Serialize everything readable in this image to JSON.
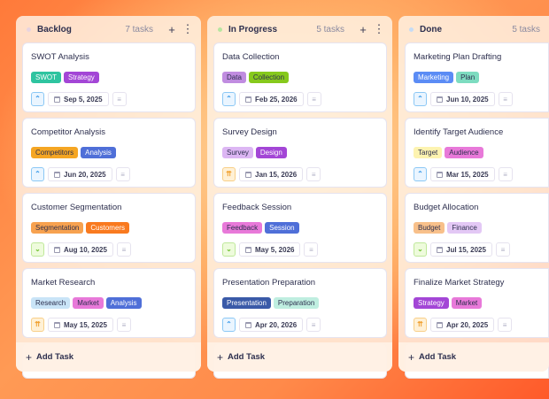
{
  "colors": {
    "up": "#3b9be8",
    "double_up": "#f0a030",
    "down": "#6cc02a"
  },
  "columns": [
    {
      "title": "Backlog",
      "count": "7 tasks",
      "dot": "#e8d4e0",
      "show_actions": true,
      "add_label": "Add Task",
      "cards": [
        {
          "title": "SWOT Analysis",
          "priority": "up",
          "date": "Sep 5, 2025",
          "tags": [
            {
              "label": "SWOT",
              "bg": "#2ec4a0",
              "fg": "#ffffff"
            },
            {
              "label": "Strategy",
              "bg": "#a346d6",
              "fg": "#ffffff"
            }
          ]
        },
        {
          "title": "Competitor Analysis",
          "priority": "up",
          "date": "Jun 20, 2025",
          "tags": [
            {
              "label": "Competitors",
              "bg": "#f5a623",
              "fg": "#2d2f4e"
            },
            {
              "label": "Analysis",
              "bg": "#4f6fd8",
              "fg": "#ffffff"
            }
          ]
        },
        {
          "title": "Customer Segmentation",
          "priority": "down",
          "date": "Aug 10, 2025",
          "tags": [
            {
              "label": "Segmentation",
              "bg": "#f7a250",
              "fg": "#2d2f4e"
            },
            {
              "label": "Customers",
              "bg": "#f97a1f",
              "fg": "#ffffff"
            }
          ]
        },
        {
          "title": "Market Research",
          "priority": "double_up",
          "date": "May 15, 2025",
          "tags": [
            {
              "label": "Research",
              "bg": "#c9e4f7",
              "fg": "#2d2f4e"
            },
            {
              "label": "Market",
              "bg": "#e879d9",
              "fg": "#2d2f4e"
            },
            {
              "label": "Analysis",
              "bg": "#4f6fd8",
              "fg": "#ffffff"
            }
          ]
        }
      ]
    },
    {
      "title": "In Progress",
      "count": "5 tasks",
      "dot": "#b8e6a0",
      "show_actions": true,
      "add_label": "Add Task",
      "cards": [
        {
          "title": "Data Collection",
          "priority": "up",
          "date": "Feb 25, 2026",
          "tags": [
            {
              "label": "Data",
              "bg": "#c08ce0",
              "fg": "#2d2f4e"
            },
            {
              "label": "Collection",
              "bg": "#86c91c",
              "fg": "#2d2f4e"
            }
          ]
        },
        {
          "title": "Survey Design",
          "priority": "double_up",
          "date": "Jan 15, 2026",
          "tags": [
            {
              "label": "Survey",
              "bg": "#dcb6f3",
              "fg": "#2d2f4e"
            },
            {
              "label": "Design",
              "bg": "#a346d6",
              "fg": "#ffffff"
            }
          ]
        },
        {
          "title": "Feedback Session",
          "priority": "down",
          "date": "May 5, 2026",
          "tags": [
            {
              "label": "Feedback",
              "bg": "#e879d9",
              "fg": "#2d2f4e"
            },
            {
              "label": "Session",
              "bg": "#4f6fd8",
              "fg": "#ffffff"
            }
          ]
        },
        {
          "title": "Presentation Preparation",
          "priority": "up",
          "date": "Apr 20, 2026",
          "tags": [
            {
              "label": "Presentation",
              "bg": "#3a5aa8",
              "fg": "#ffffff"
            },
            {
              "label": "Preparation",
              "bg": "#bfeee0",
              "fg": "#2d2f4e"
            }
          ]
        }
      ]
    },
    {
      "title": "Done",
      "count": "5 tasks",
      "dot": "#c6dcf5",
      "show_actions": false,
      "add_label": "Add Task",
      "cards": [
        {
          "title": "Marketing Plan Drafting",
          "priority": "up",
          "date": "Jun 10, 2025",
          "tags": [
            {
              "label": "Marketing",
              "bg": "#5b8cf5",
              "fg": "#ffffff"
            },
            {
              "label": "Plan",
              "bg": "#7ddcc0",
              "fg": "#2d2f4e"
            }
          ]
        },
        {
          "title": "Identify Target Audience",
          "priority": "up",
          "date": "Mar 15, 2025",
          "tags": [
            {
              "label": "Target",
              "bg": "#fdf3b0",
              "fg": "#2d2f4e"
            },
            {
              "label": "Audience",
              "bg": "#e879d9",
              "fg": "#2d2f4e"
            }
          ]
        },
        {
          "title": "Budget Allocation",
          "priority": "down",
          "date": "Jul 15, 2025",
          "tags": [
            {
              "label": "Budget",
              "bg": "#f8c08a",
              "fg": "#2d2f4e"
            },
            {
              "label": "Finance",
              "bg": "#e3c8f5",
              "fg": "#2d2f4e"
            }
          ]
        },
        {
          "title": "Finalize Market Strategy",
          "priority": "double_up",
          "date": "Apr 20, 2025",
          "tags": [
            {
              "label": "Strategy",
              "bg": "#a346d6",
              "fg": "#ffffff"
            },
            {
              "label": "Market",
              "bg": "#e879d9",
              "fg": "#2d2f4e"
            }
          ]
        }
      ]
    }
  ]
}
